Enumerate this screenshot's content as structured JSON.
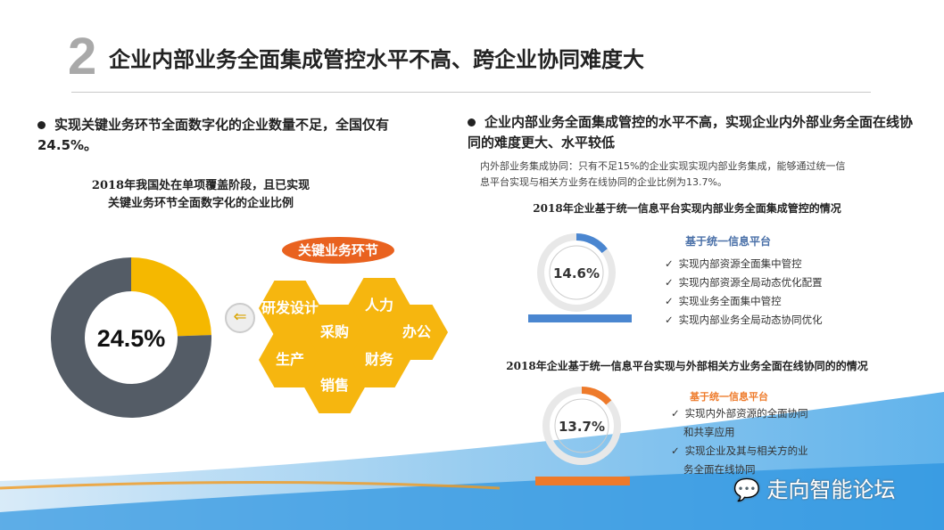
{
  "header": {
    "number": "2",
    "title": "企业内部业务全面集成管控水平不高、跨企业协同难度大"
  },
  "left": {
    "bullet": "实现关键业务环节全面数字化的企业数量不足，全国仅有24.5%。",
    "chart_title_line1": "2018年我国处在单项覆盖阶段，且已实现",
    "chart_title_line2": "关键业务环节全面数字化的企业比例",
    "donut_label": "24.5%",
    "key_tag": "关键业务环节",
    "hexes": [
      "研发设计",
      "人力",
      "采购",
      "办公",
      "生产",
      "财务",
      "销售"
    ],
    "arrow_icon": "arrow-left-circle-icon"
  },
  "right": {
    "bullet": "企业内部业务全面集成管控的水平不高，实现企业内外部业务全面在线协同的难度更大、水平较低",
    "note_line1": "内外部业务集成协同：只有不足15%的企业实现实现内部业务集成，能够通过统一信",
    "note_line2": "息平台实现与相关方业务在线协同的企业比例为13.7%。",
    "chart1_title": "2018年企业基于统一信息平台实现内部业务全面集成管控的情况",
    "chart1_label": "14.6%",
    "chart1_heading": "基于统一信息平台",
    "chart1_items": [
      "实现内部资源全面集中管控",
      "实现内部资源全局动态优化配置",
      "实现业务全面集中管控",
      "实现内部业务全局动态协同优化"
    ],
    "chart2_title": "2018年企业基于统一信息平台实现与外部相关方业务全面在线协同的的情况",
    "chart2_label": "13.7%",
    "chart2_heading": "基于统一信息平台",
    "chart2_items": [
      "实现内外部资源的全面协同",
      "和共享应用",
      "实现企业及其与相关方的业",
      "务全面在线协同"
    ]
  },
  "watermark": "走向智能论坛",
  "colors": {
    "dark": "#545c66",
    "yellow": "#f5b800",
    "blue": "#4a86d0",
    "orange": "#ee7a2a"
  },
  "chart_data": [
    {
      "type": "pie",
      "variant": "donut",
      "values": [
        24.5,
        75.5
      ],
      "label": "24.5%",
      "colors": [
        "#f5b800",
        "#545c66"
      ]
    },
    {
      "type": "pie",
      "variant": "donut",
      "values": [
        14.6,
        85.4
      ],
      "label": "14.6%",
      "colors": [
        "#4a86d0",
        "#e8e8e8"
      ]
    },
    {
      "type": "pie",
      "variant": "donut",
      "values": [
        13.7,
        86.3
      ],
      "label": "13.7%",
      "colors": [
        "#ee7a2a",
        "#e8e8e8"
      ]
    }
  ]
}
